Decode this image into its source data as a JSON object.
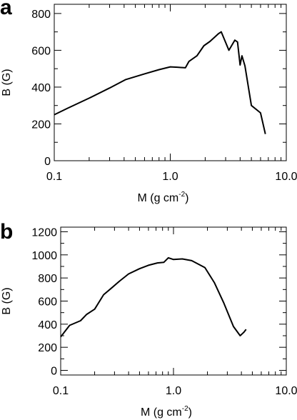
{
  "chart_data": [
    {
      "panel": "a",
      "type": "line",
      "xlabel": {
        "base": "M (g cm",
        "sup": "-2",
        "close": ")"
      },
      "ylabel": "B (G)",
      "xscale": "log",
      "xlim": [
        0.1,
        10.0
      ],
      "ylim": [
        0,
        850
      ],
      "xticks": [
        {
          "value": 0.1,
          "label": "0.1"
        },
        {
          "value": 1.0,
          "label": "1.0"
        },
        {
          "value": 10.0,
          "label": "10.0"
        }
      ],
      "yticks": [
        0,
        200,
        400,
        600,
        800
      ],
      "grid": false,
      "series": [
        {
          "color": "#000000",
          "x": [
            0.1,
            0.13,
            0.2,
            0.3,
            0.41,
            0.6,
            0.8,
            1.0,
            1.15,
            1.35,
            1.45,
            1.7,
            1.95,
            2.2,
            2.6,
            2.75,
            3.2,
            3.6,
            3.8,
            4.0,
            4.15,
            4.4,
            5.0,
            6.0,
            6.6
          ],
          "y": [
            250,
            285,
            340,
            395,
            440,
            472,
            495,
            510,
            508,
            505,
            540,
            570,
            625,
            648,
            690,
            700,
            600,
            655,
            645,
            520,
            570,
            515,
            300,
            260,
            145
          ]
        }
      ]
    },
    {
      "panel": "b",
      "type": "line",
      "xlabel": {
        "base": "M (g cm",
        "sup": "-2",
        "close": ")"
      },
      "ylabel": "B (G)",
      "xscale": "log",
      "xlim": [
        0.1,
        10.0
      ],
      "ylim": [
        -40,
        1240
      ],
      "xticks": [
        {
          "value": 0.1,
          "label": "0.1"
        },
        {
          "value": 1.0,
          "label": "1.0"
        },
        {
          "value": 10.0,
          "label": "10.0"
        }
      ],
      "yticks": [
        0,
        200,
        400,
        600,
        800,
        1000,
        1200
      ],
      "grid": false,
      "series": [
        {
          "color": "#000000",
          "x": [
            0.1,
            0.12,
            0.15,
            0.17,
            0.2,
            0.24,
            0.28,
            0.33,
            0.4,
            0.5,
            0.6,
            0.72,
            0.82,
            0.9,
            1.0,
            1.2,
            1.45,
            1.9,
            2.3,
            2.8,
            3.4,
            3.9,
            4.2,
            4.4
          ],
          "y": [
            290,
            390,
            430,
            485,
            530,
            655,
            710,
            770,
            835,
            880,
            910,
            930,
            935,
            975,
            960,
            965,
            950,
            890,
            760,
            580,
            380,
            300,
            330,
            355
          ]
        }
      ]
    }
  ]
}
